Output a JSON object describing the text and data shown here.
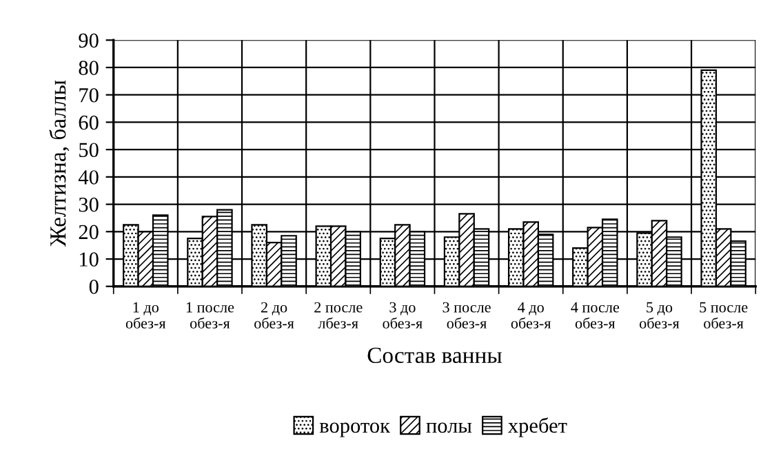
{
  "chart_data": {
    "type": "bar",
    "categories": [
      "1 до\nобез-я",
      "1 после\nобез-я",
      "2 до\nобез-я",
      "2 после\nлбез-я",
      "3 до\nобез-я",
      "3 после\nобез-я",
      "4 до\nобез-я",
      "4 после\nобез-я",
      "5 до\nобез-я",
      "5 после\nобез-я"
    ],
    "series": [
      {
        "name": "вороток",
        "color": "#000000",
        "values": [
          22.5,
          17.5,
          22.5,
          22,
          17.5,
          18,
          21,
          14,
          19.5,
          79
        ]
      },
      {
        "name": "полы",
        "color": "#000000",
        "values": [
          20,
          25.5,
          16,
          22,
          22.5,
          26.5,
          23.5,
          21.5,
          24,
          21
        ]
      },
      {
        "name": "хребет",
        "color": "#000000",
        "values": [
          26,
          28,
          18.5,
          20,
          20,
          21,
          19,
          24.5,
          18,
          16.5
        ]
      }
    ],
    "xlabel": "Состав ванны",
    "ylabel": "Желтизна, баллы",
    "ylim": [
      0,
      90
    ],
    "yticks": [
      0,
      10,
      20,
      30,
      40,
      50,
      60,
      70,
      80,
      90
    ],
    "grid": true,
    "legend": "bottom"
  }
}
